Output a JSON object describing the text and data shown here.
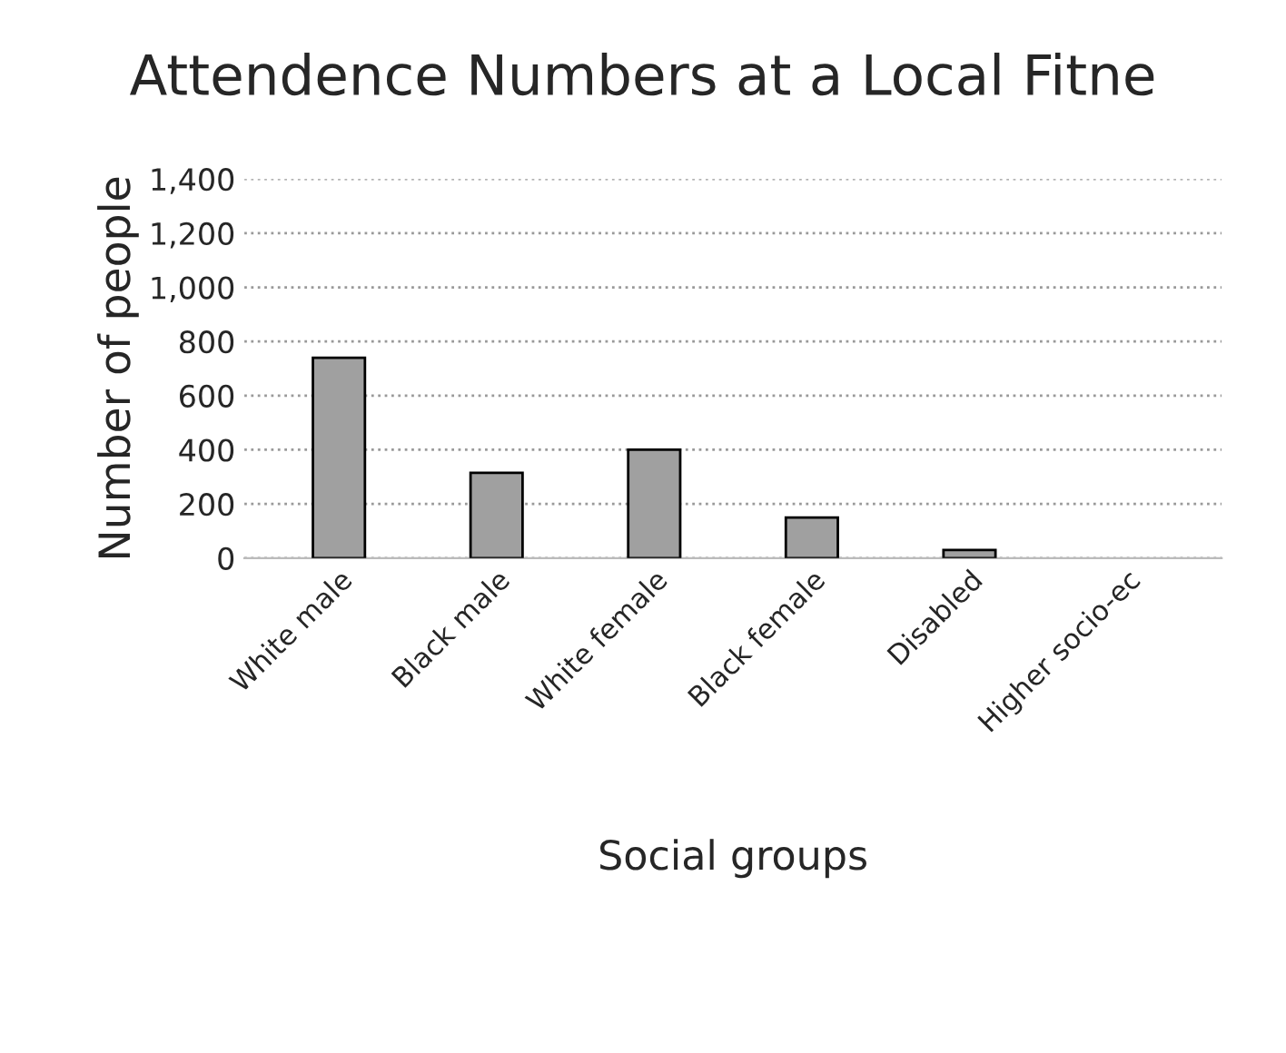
{
  "chart_data": {
    "type": "bar",
    "title": "Attendence Numbers at a Local Fitne",
    "xlabel": "Social groups",
    "ylabel": "Number of people",
    "categories": [
      "White male",
      "Black male",
      "White female",
      "Black female",
      "Disabled",
      "Higher socio-ec"
    ],
    "values": [
      740,
      315,
      400,
      150,
      30,
      null
    ],
    "color": "#a0a0a0",
    "ylim": [
      0,
      1400
    ],
    "yticks": [
      {
        "value": 0,
        "label": "0"
      },
      {
        "value": 200,
        "label": "200"
      },
      {
        "value": 400,
        "label": "400"
      },
      {
        "value": 600,
        "label": "600"
      },
      {
        "value": 800,
        "label": "800"
      },
      {
        "value": 1000,
        "label": "1,000"
      },
      {
        "value": 1200,
        "label": "1,200"
      },
      {
        "value": 1400,
        "label": "1,400"
      }
    ],
    "grid": "y",
    "legend": false
  }
}
